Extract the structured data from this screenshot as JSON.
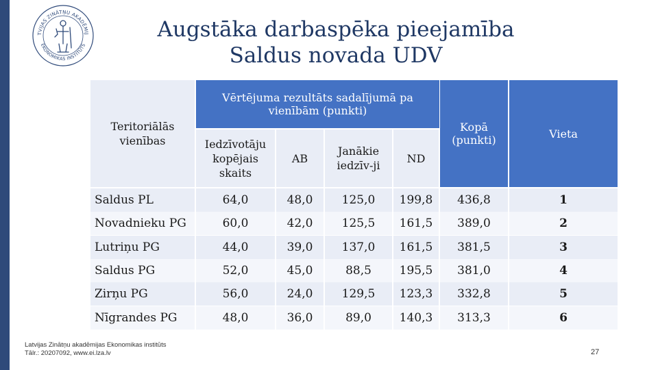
{
  "logo": {
    "icon": "institute-seal-logo",
    "text_top": "LATVIJAS ZINĀTŅU AKADĒMIJAS",
    "text_bottom": "EKONOMIKAS INSTITŪTS",
    "color": "#2f4a7a"
  },
  "title": {
    "line1": "Augstāka darbaspēka pieejamība",
    "line2": "Saldus novada UDV"
  },
  "table": {
    "headers": {
      "territory": "Teritoriālās vienības",
      "group": "Vērtējuma rezultāts sadalījumā pa vienībām (punkti)",
      "total": "Kopā (punkti)",
      "rank": "Vieta",
      "sub": [
        "Iedzīvotāju kopējais skaits",
        "AB",
        "Janākie iedzīv-ji",
        "ND"
      ]
    },
    "rows": [
      {
        "name": "Saldus PL",
        "v": [
          "64,0",
          "48,0",
          "125,0",
          "199,8"
        ],
        "total": "436,8",
        "rank": "1"
      },
      {
        "name": "Novadnieku PG",
        "v": [
          "60,0",
          "42,0",
          "125,5",
          "161,5"
        ],
        "total": "389,0",
        "rank": "2"
      },
      {
        "name": "Lutriņu PG",
        "v": [
          "44,0",
          "39,0",
          "137,0",
          "161,5"
        ],
        "total": "381,5",
        "rank": "3"
      },
      {
        "name": "Saldus PG",
        "v": [
          "52,0",
          "45,0",
          "88,5",
          "195,5"
        ],
        "total": "381,0",
        "rank": "4"
      },
      {
        "name": "Zirņu PG",
        "v": [
          "56,0",
          "24,0",
          "129,5",
          "123,3"
        ],
        "total": "332,8",
        "rank": "5"
      },
      {
        "name": "Nīgrandes PG",
        "v": [
          "48,0",
          "36,0",
          "89,0",
          "140,3"
        ],
        "total": "313,3",
        "rank": "6"
      }
    ],
    "colors": {
      "header": "#4472c4",
      "row_odd": "#e9edf6",
      "row_even": "#f4f6fb"
    }
  },
  "footer": {
    "line1": "Latvijas Zinātņu akadēmijas Ekonomikas institūts",
    "line2": "Tālr.: 20207092, www.ei.lza.lv"
  },
  "page_number": "27"
}
